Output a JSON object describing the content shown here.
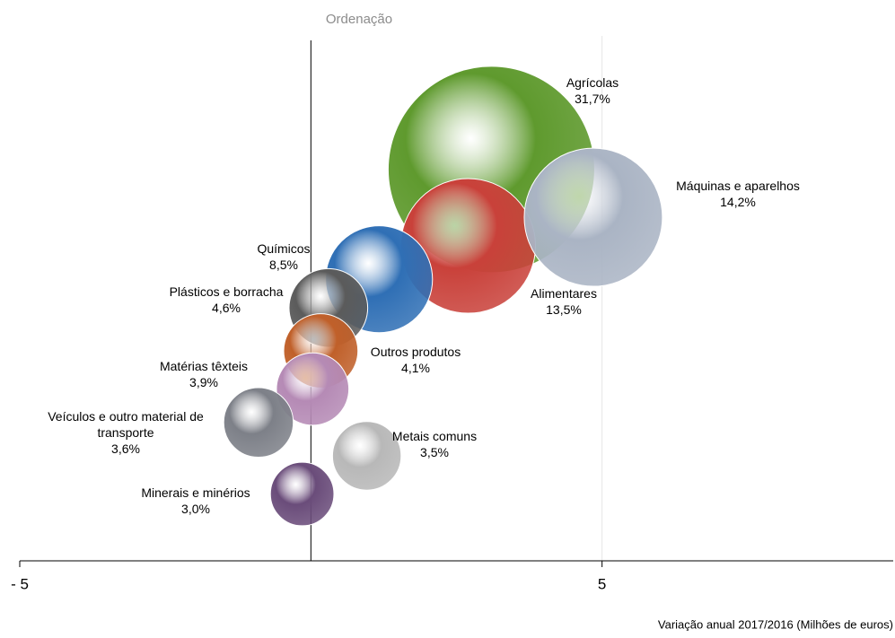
{
  "chart_data": {
    "type": "bubble",
    "x_label": "Variação anual 2017/2016 (Milhões de euros)",
    "y_label": "Ordenação",
    "xlim": [
      -5,
      10
    ],
    "xticks": [
      {
        "value": -5,
        "label": "- 5"
      },
      5
    ],
    "ylim": [
      0,
      11
    ],
    "grid": true,
    "series": [
      {
        "names": [
          "Agrícolas",
          "Alimentares",
          "Máquinas e aparelhos",
          "Químicos",
          "Plásticos e borracha",
          "Outros produtos",
          "Matérias têxteis",
          "Veículos e outro material de transporte",
          "Metais comuns",
          "Minerais e minérios"
        ],
        "x": [
          3.1,
          2.7,
          4.85,
          1.17,
          0.3,
          0.17,
          0.03,
          -0.9,
          0.96,
          -0.15
        ],
        "values": [
          8.2,
          6.6,
          7.2,
          5.9,
          5.3,
          4.4,
          3.6,
          2.9,
          2.2,
          1.4
        ],
        "sizes": [
          31.7,
          13.5,
          14.2,
          8.5,
          4.6,
          4.1,
          3.9,
          3.6,
          3.5,
          3.0
        ],
        "value_labels": [
          "31,7%",
          "13,5%",
          "14,2%",
          "8,5%",
          "4,6%",
          "4,1%",
          "3,9%",
          "3,6%",
          "3,5%",
          "3,0%"
        ],
        "colors": [
          "#5f9a2e",
          "#c9413a",
          "#aab4c4",
          "#2f6fb5",
          "#5b5b5b",
          "#c0602a",
          "#b58ab5",
          "#7d8088",
          "#b8b8b8",
          "#6a4c7a"
        ]
      }
    ]
  }
}
